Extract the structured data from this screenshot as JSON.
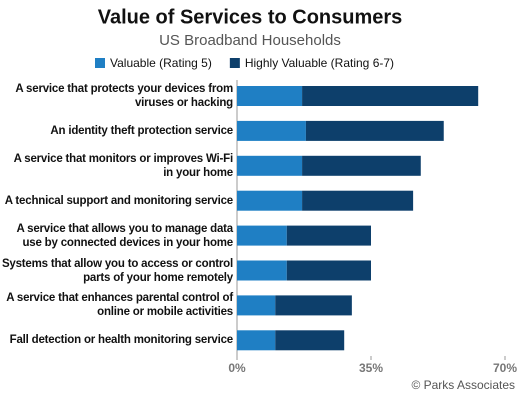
{
  "chart_data": {
    "type": "stacked-bar-horizontal",
    "title": "Value of Services to Consumers",
    "subtitle": "US Broadband Households",
    "categories": [
      "A service that protects your devices from\nviruses or hacking",
      "An identity theft protection service",
      "A service that monitors or improves Wi-Fi\nin your home",
      "A technical support and monitoring service",
      "A service that allows you to manage data\nuse by connected devices in your home",
      "Systems that allow you to access or control\nparts of your home remotely",
      "A service that enhances parental control of\nonline or mobile activities",
      "Fall detection or health monitoring service"
    ],
    "series": [
      {
        "name": "Valuable (Rating 5)",
        "color": "#1f7fc4",
        "values": [
          17,
          18,
          17,
          17,
          13,
          13,
          10,
          10
        ]
      },
      {
        "name": "Highly Valuable (Rating 6-7)",
        "color": "#0d3f6b",
        "values": [
          46,
          36,
          31,
          29,
          22,
          22,
          20,
          18
        ]
      }
    ],
    "xlim": [
      0,
      70
    ],
    "xticks": [
      {
        "value": 0,
        "label": "0%"
      },
      {
        "value": 35,
        "label": "35%"
      },
      {
        "value": 70,
        "label": "70%"
      }
    ],
    "legend": "top",
    "source": "© Parks Associates"
  }
}
